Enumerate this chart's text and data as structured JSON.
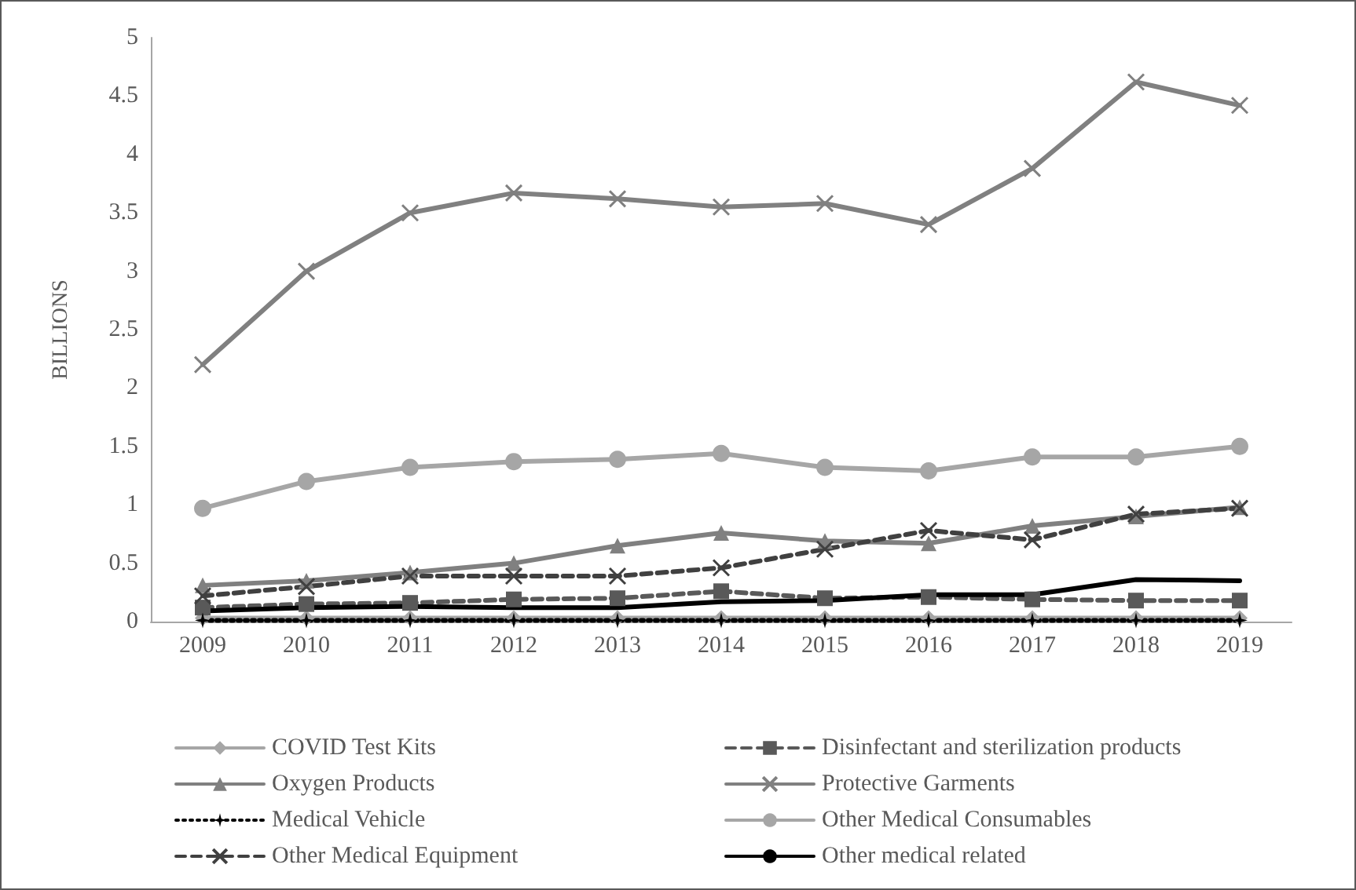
{
  "chart_data": {
    "type": "line",
    "ylabel": "BILLIONS",
    "categories": [
      "2009",
      "2010",
      "2011",
      "2012",
      "2013",
      "2014",
      "2015",
      "2016",
      "2017",
      "2018",
      "2019"
    ],
    "ylim": [
      0,
      5
    ],
    "yticks": [
      0,
      0.5,
      1,
      1.5,
      2,
      2.5,
      3,
      3.5,
      4,
      4.5,
      5
    ],
    "grid": false,
    "legend": "bottom",
    "series": [
      {
        "name": "COVID Test Kits",
        "color": "#a6a6a6",
        "marker": "diamond",
        "line_style": "solid",
        "values": [
          0.03,
          0.03,
          0.03,
          0.03,
          0.03,
          0.03,
          0.03,
          0.03,
          0.03,
          0.03,
          0.03
        ]
      },
      {
        "name": "Disinfectant and sterilization products",
        "color": "#595959",
        "marker": "square",
        "line_style": "dashed",
        "values": [
          0.12,
          0.15,
          0.16,
          0.19,
          0.2,
          0.26,
          0.2,
          0.21,
          0.19,
          0.18,
          0.18
        ]
      },
      {
        "name": "Oxygen Products",
        "color": "#808080",
        "marker": "triangle",
        "line_style": "solid",
        "values": [
          0.31,
          0.35,
          0.42,
          0.5,
          0.65,
          0.76,
          0.69,
          0.67,
          0.82,
          0.9,
          0.98
        ]
      },
      {
        "name": "Protective Garments",
        "color": "#808080",
        "marker": "cross",
        "line_style": "solid",
        "values": [
          2.2,
          3.0,
          3.5,
          3.67,
          3.62,
          3.55,
          3.58,
          3.4,
          3.88,
          4.62,
          4.42
        ]
      },
      {
        "name": "Medical Vehicle",
        "color": "#000000",
        "marker": "star",
        "line_style": "dotted",
        "values": [
          0.01,
          0.01,
          0.01,
          0.01,
          0.01,
          0.01,
          0.01,
          0.01,
          0.01,
          0.01,
          0.01
        ]
      },
      {
        "name": "Other Medical Consumables",
        "color": "#a6a6a6",
        "marker": "circle",
        "line_style": "solid",
        "values": [
          0.97,
          1.2,
          1.32,
          1.37,
          1.39,
          1.44,
          1.32,
          1.29,
          1.41,
          1.41,
          1.5
        ]
      },
      {
        "name": "Other Medical Equipment",
        "color": "#404040",
        "marker": "cross",
        "line_style": "dashed",
        "values": [
          0.22,
          0.3,
          0.39,
          0.39,
          0.39,
          0.46,
          0.62,
          0.78,
          0.7,
          0.92,
          0.97
        ]
      },
      {
        "name": "Other medical related",
        "color": "#000000",
        "marker": "none",
        "line_style": "solid",
        "values": [
          0.09,
          0.12,
          0.13,
          0.12,
          0.12,
          0.17,
          0.18,
          0.23,
          0.23,
          0.36,
          0.35
        ]
      }
    ]
  }
}
